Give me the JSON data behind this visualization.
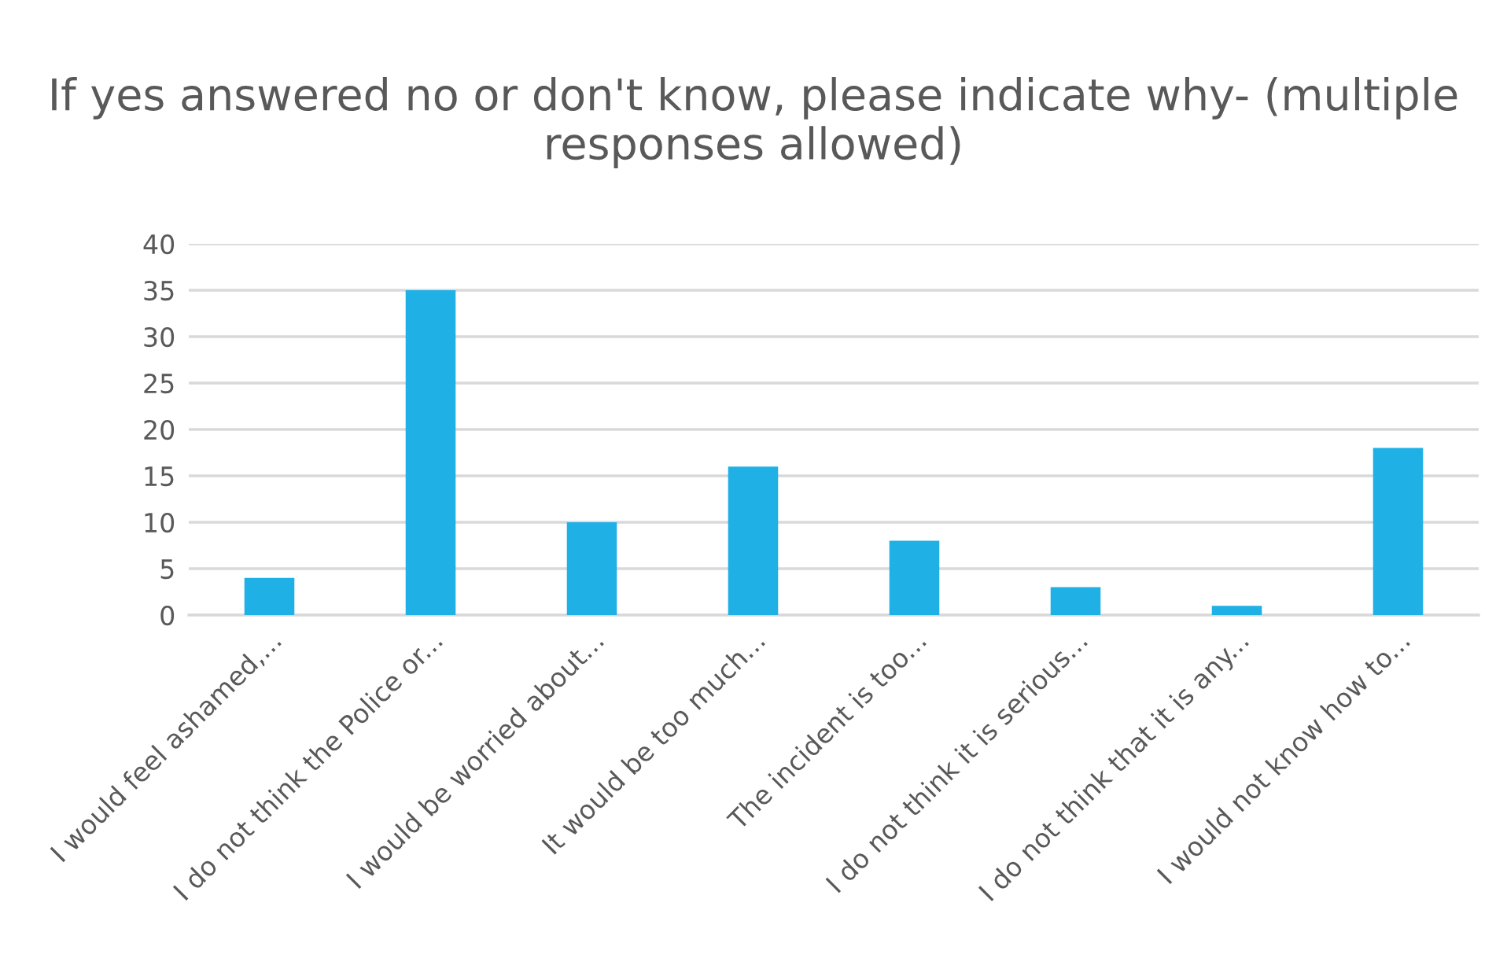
{
  "chart_data": {
    "type": "bar",
    "title": "If yes answered no or don't know, please indicate why- (multiple responses allowed)",
    "categories": [
      "I would feel ashamed,...",
      "I do not think the Police or...",
      "I would be worried about...",
      "It would be too much...",
      "The incident is too...",
      "I do not think it is serious...",
      "I do not think that it is any...",
      "I would not know how to..."
    ],
    "values": [
      4,
      35,
      10,
      16,
      8,
      3,
      1,
      18
    ],
    "color": "#1fb0e6",
    "ylim": [
      0,
      40
    ],
    "yticks": [
      0,
      5,
      10,
      15,
      20,
      25,
      30,
      35,
      40
    ],
    "grid": "y",
    "legend": false
  }
}
